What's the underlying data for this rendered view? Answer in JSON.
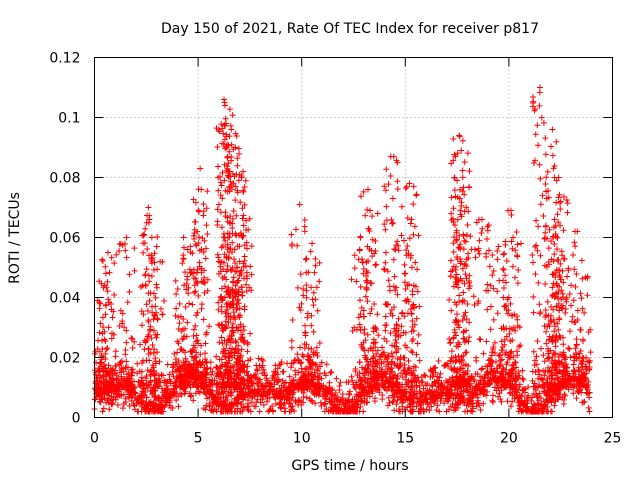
{
  "chart_data": {
    "type": "scatter",
    "title": "Day 150 of 2021, Rate Of TEC Index for receiver p817",
    "xlabel": "GPS time / hours",
    "ylabel": "ROTI / TECUs",
    "xlim": [
      0,
      25
    ],
    "ylim": [
      0,
      0.12
    ],
    "x_ticks": [
      0,
      5,
      10,
      15,
      20,
      25
    ],
    "x_tick_labels": [
      "0",
      "5",
      "10",
      "15",
      "20",
      "25"
    ],
    "y_ticks": [
      0,
      0.02,
      0.04,
      0.06,
      0.08,
      0.1,
      0.12
    ],
    "y_tick_labels": [
      "0",
      "0.02",
      "0.04",
      "0.06",
      "0.08",
      "0.1",
      "0.12"
    ],
    "grid": true,
    "marker": "+",
    "color": "#ff0000",
    "series": [
      {
        "name": "ROTI",
        "peaks": [
          [
            0.15,
            0.039
          ],
          [
            0.55,
            0.048
          ],
          [
            0.65,
            0.055
          ],
          [
            1.55,
            0.06
          ],
          [
            2.6,
            0.07
          ],
          [
            2.65,
            0.066
          ],
          [
            3.0,
            0.057
          ],
          [
            4.3,
            0.06
          ],
          [
            4.5,
            0.056
          ],
          [
            5.1,
            0.083
          ],
          [
            5.15,
            0.076
          ],
          [
            6.25,
            0.106
          ],
          [
            6.3,
            0.104
          ],
          [
            6.35,
            0.098
          ],
          [
            6.6,
            0.096
          ],
          [
            6.8,
            0.09
          ],
          [
            6.85,
            0.081
          ],
          [
            7.1,
            0.08
          ],
          [
            7.2,
            0.064
          ],
          [
            9.9,
            0.071
          ],
          [
            10.5,
            0.058
          ],
          [
            12.8,
            0.056
          ],
          [
            13.2,
            0.076
          ],
          [
            13.3,
            0.069
          ],
          [
            14.3,
            0.087
          ],
          [
            14.4,
            0.073
          ],
          [
            15.2,
            0.078
          ],
          [
            15.3,
            0.066
          ],
          [
            17.6,
            0.094
          ],
          [
            17.7,
            0.089
          ],
          [
            17.5,
            0.079
          ],
          [
            17.8,
            0.061
          ],
          [
            18.7,
            0.066
          ],
          [
            19.5,
            0.057
          ],
          [
            20.1,
            0.069
          ],
          [
            20.2,
            0.06
          ],
          [
            21.5,
            0.11
          ],
          [
            22.1,
            0.096
          ],
          [
            22.2,
            0.066
          ],
          [
            22.4,
            0.08
          ],
          [
            22.5,
            0.072
          ],
          [
            23.3,
            0.062
          ],
          [
            23.8,
            0.047
          ]
        ]
      }
    ]
  }
}
